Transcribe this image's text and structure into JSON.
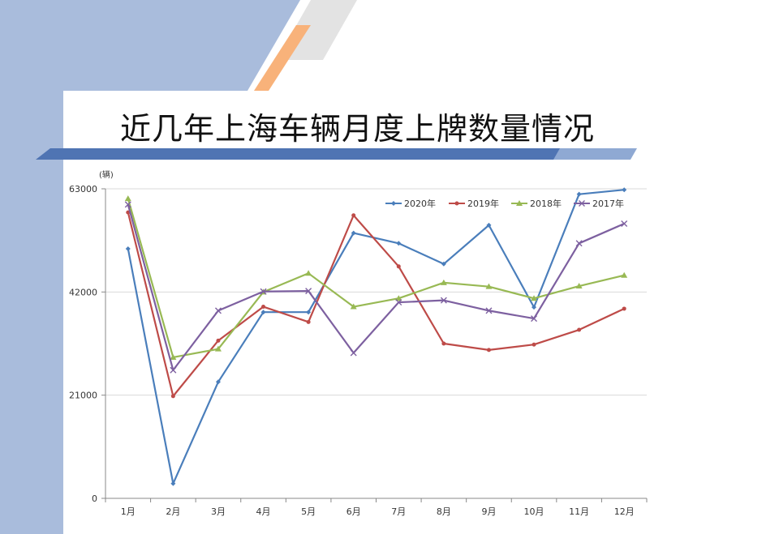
{
  "title": "近几年上海车辆月度上牌数量情况",
  "colors": {
    "panel_left": "#a9bcdc",
    "accent_orange": "#f8b27a",
    "accent_gray": "#e3e3e3",
    "band_blue": "#4f74b3",
    "band_light": "#8fa9d3"
  },
  "chart_data": {
    "type": "line",
    "unit_label": "(辆)",
    "categories": [
      "1月",
      "2月",
      "3月",
      "4月",
      "5月",
      "6月",
      "7月",
      "8月",
      "9月",
      "10月",
      "11月",
      "12月"
    ],
    "ylim": [
      0,
      63000
    ],
    "yticks": [
      0,
      21000,
      42000,
      63000
    ],
    "grid": true,
    "legend_position": "top-right",
    "series": [
      {
        "name": "2020年",
        "color": "#4a7ebb",
        "marker": "diamond",
        "values": [
          50800,
          3000,
          23700,
          37900,
          37900,
          54000,
          51900,
          47700,
          55600,
          38900,
          61900,
          62800
        ]
      },
      {
        "name": "2019年",
        "color": "#be4b48",
        "marker": "circle",
        "values": [
          58200,
          20800,
          32100,
          39000,
          35900,
          57600,
          47200,
          31500,
          30200,
          31300,
          34300,
          38600
        ]
      },
      {
        "name": "2018年",
        "color": "#98b954",
        "marker": "triangle",
        "values": [
          61000,
          28700,
          30400,
          42000,
          45800,
          39000,
          40700,
          43900,
          43100,
          40700,
          43200,
          45400
        ]
      },
      {
        "name": "2017年",
        "color": "#7d60a0",
        "marker": "x",
        "values": [
          59800,
          26100,
          38200,
          42100,
          42200,
          29600,
          39900,
          40300,
          38200,
          36600,
          51900,
          55900
        ]
      }
    ]
  }
}
